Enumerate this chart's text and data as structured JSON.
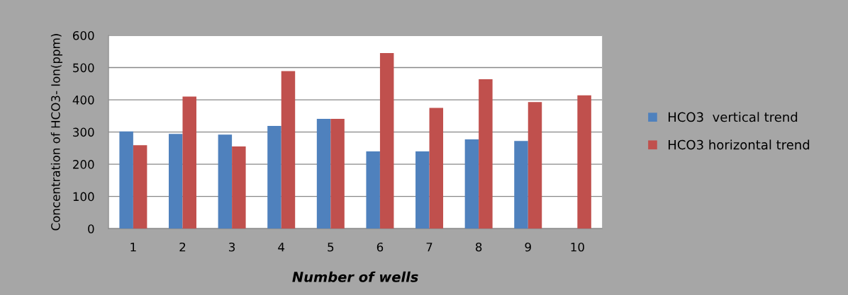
{
  "chart_data": {
    "type": "bar",
    "xlabel": "Number of wells",
    "ylabel": "Concentration of HCO3- Ion(ppm)",
    "categories": [
      "1",
      "2",
      "3",
      "4",
      "5",
      "6",
      "7",
      "8",
      "9",
      "10"
    ],
    "series": [
      {
        "name": "HCO3  vertical trend",
        "color": "#4f81bd",
        "values": [
          302,
          294,
          292,
          319,
          341,
          240,
          240,
          277,
          272,
          null
        ]
      },
      {
        "name": "HCO3 horizontal trend",
        "color": "#c0504d",
        "values": [
          259,
          410,
          255,
          489,
          341,
          545,
          375,
          464,
          393,
          414
        ]
      }
    ],
    "ylim": [
      0,
      600
    ],
    "yticks": [
      0,
      100,
      200,
      300,
      400,
      500,
      600
    ],
    "grid": "y",
    "legend": "right"
  }
}
